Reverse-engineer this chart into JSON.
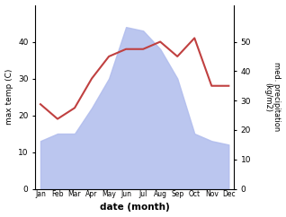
{
  "months": [
    "Jan",
    "Feb",
    "Mar",
    "Apr",
    "May",
    "Jun",
    "Jul",
    "Aug",
    "Sep",
    "Oct",
    "Nov",
    "Dec"
  ],
  "temp_line": [
    23,
    19,
    22,
    30,
    36,
    38,
    38,
    40,
    36,
    41,
    28,
    28
  ],
  "precip_fill": [
    13,
    15,
    15,
    22,
    30,
    44,
    43,
    38,
    30,
    15,
    13,
    12
  ],
  "temp_ylim": [
    0,
    50
  ],
  "precip_ylim": [
    0,
    62.5
  ],
  "temp_yticks": [
    0,
    10,
    20,
    30,
    40
  ],
  "precip_yticks": [
    0,
    10,
    20,
    30,
    40,
    50
  ],
  "fill_color": "#b0bced",
  "fill_alpha": 0.85,
  "line_color": "#c04040",
  "bg_color": "#ffffff",
  "ylabel_left": "max temp (C)",
  "ylabel_right": "med. precipitation\n(kg/m2)",
  "xlabel": "date (month)"
}
